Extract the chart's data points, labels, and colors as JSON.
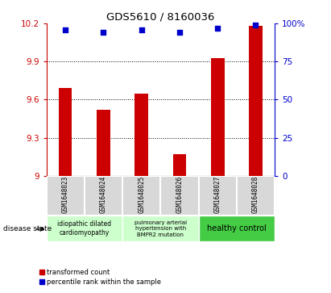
{
  "title": "GDS5610 / 8160036",
  "samples": [
    "GSM1648023",
    "GSM1648024",
    "GSM1648025",
    "GSM1648026",
    "GSM1648027",
    "GSM1648028"
  ],
  "red_values": [
    9.69,
    9.52,
    9.65,
    9.17,
    9.93,
    10.18
  ],
  "blue_values": [
    96,
    94,
    96,
    94,
    97,
    99
  ],
  "ylim_left": [
    9.0,
    10.2
  ],
  "ylim_right": [
    0,
    100
  ],
  "yticks_left": [
    9.0,
    9.3,
    9.6,
    9.9,
    10.2
  ],
  "yticks_right": [
    0,
    25,
    50,
    75,
    100
  ],
  "ytick_labels_left": [
    "9",
    "9.3",
    "9.6",
    "9.9",
    "10.2"
  ],
  "ytick_labels_right": [
    "0",
    "25",
    "50",
    "75",
    "100%"
  ],
  "red_color": "#cc0000",
  "blue_color": "#0000cc",
  "bar_width": 0.35,
  "legend_red_label": "transformed count",
  "legend_blue_label": "percentile rank within the sample",
  "disease_state_label": "disease state",
  "bg_color": "#d8d8d8",
  "group1_color": "#ccffcc",
  "group2_color": "#ccffcc",
  "group3_color": "#44cc44",
  "grid_ticks": [
    9.3,
    9.6,
    9.9
  ]
}
